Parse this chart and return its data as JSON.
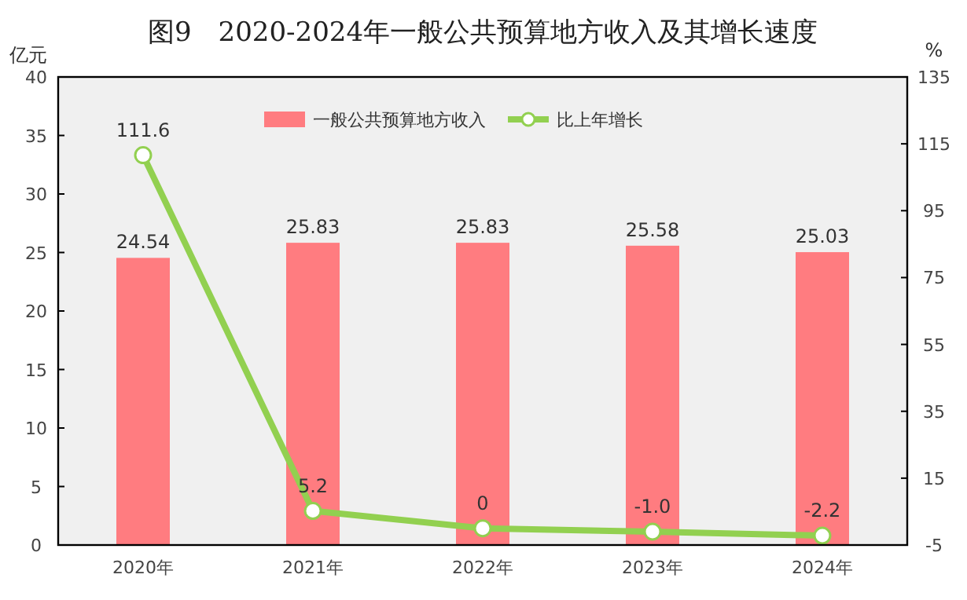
{
  "chart_data": {
    "type": "bar",
    "title": "图9　2020-2024年一般公共预算地方收入及其增长速度",
    "ylabel": "亿元",
    "y2label": "%",
    "categories": [
      "2020年",
      "2021年",
      "2022年",
      "2023年",
      "2024年"
    ],
    "series": [
      {
        "name": "一般公共预算地方收入",
        "color": "#ff7c80",
        "values": [
          24.54,
          25.83,
          25.83,
          25.58,
          25.03
        ],
        "value_labels": [
          "24.54",
          "25.83",
          "25.83",
          "25.58",
          "25.03"
        ]
      },
      {
        "name": "比上年增长",
        "type": "line",
        "axis": "y2",
        "color": "#92d050",
        "marker": "circle",
        "values": [
          111.6,
          5.2,
          0,
          -1.0,
          -2.2
        ],
        "value_labels": [
          "111.6",
          "5.2",
          "0",
          "-1.0",
          "-2.2"
        ]
      }
    ],
    "ylim": [
      0,
      40
    ],
    "yticks": [
      0,
      5,
      10,
      15,
      20,
      25,
      30,
      35,
      40
    ],
    "y2lim": [
      -5,
      135
    ],
    "y2ticks": [
      -5,
      15,
      35,
      55,
      75,
      95,
      115,
      135
    ],
    "legend": "top",
    "grid": false
  }
}
